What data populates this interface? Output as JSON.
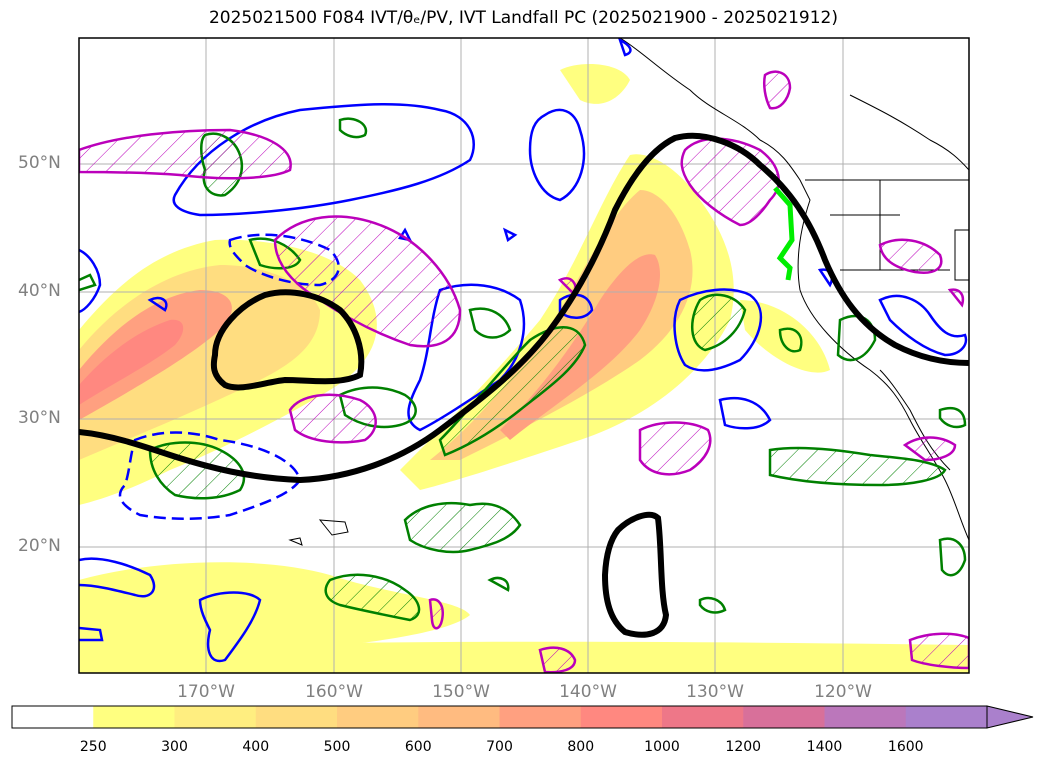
{
  "title": "2025021500 F084 IVT/θₑ/PV, IVT Landfall PC (2025021900 - 2025021912)",
  "lat_labels": [
    "50°N",
    "40°N",
    "30°N",
    "20°N"
  ],
  "lon_labels": [
    "170°W",
    "160°W",
    "150°W",
    "140°W",
    "130°W",
    "120°W"
  ],
  "colorbar": {
    "labels": [
      "250",
      "300",
      "400",
      "500",
      "600",
      "700",
      "800",
      "1000",
      "1200",
      "1400",
      "1600"
    ],
    "colors": [
      "#ffffff",
      "#ffff80",
      "#ffee80",
      "#ffdd80",
      "#ffcc80",
      "#ffbb80",
      "#ffa080",
      "#ff8880",
      "#ee7788",
      "#d8709a",
      "#bb77bb",
      "#aa80cc"
    ],
    "extend": "max"
  },
  "contour_colors": {
    "pv_positive": "#0000ff",
    "theta_e": "#008000",
    "pv_hatch": "#bb00bb",
    "landfall_pc": "#000000",
    "landfall_segment": "#00ee00"
  }
}
